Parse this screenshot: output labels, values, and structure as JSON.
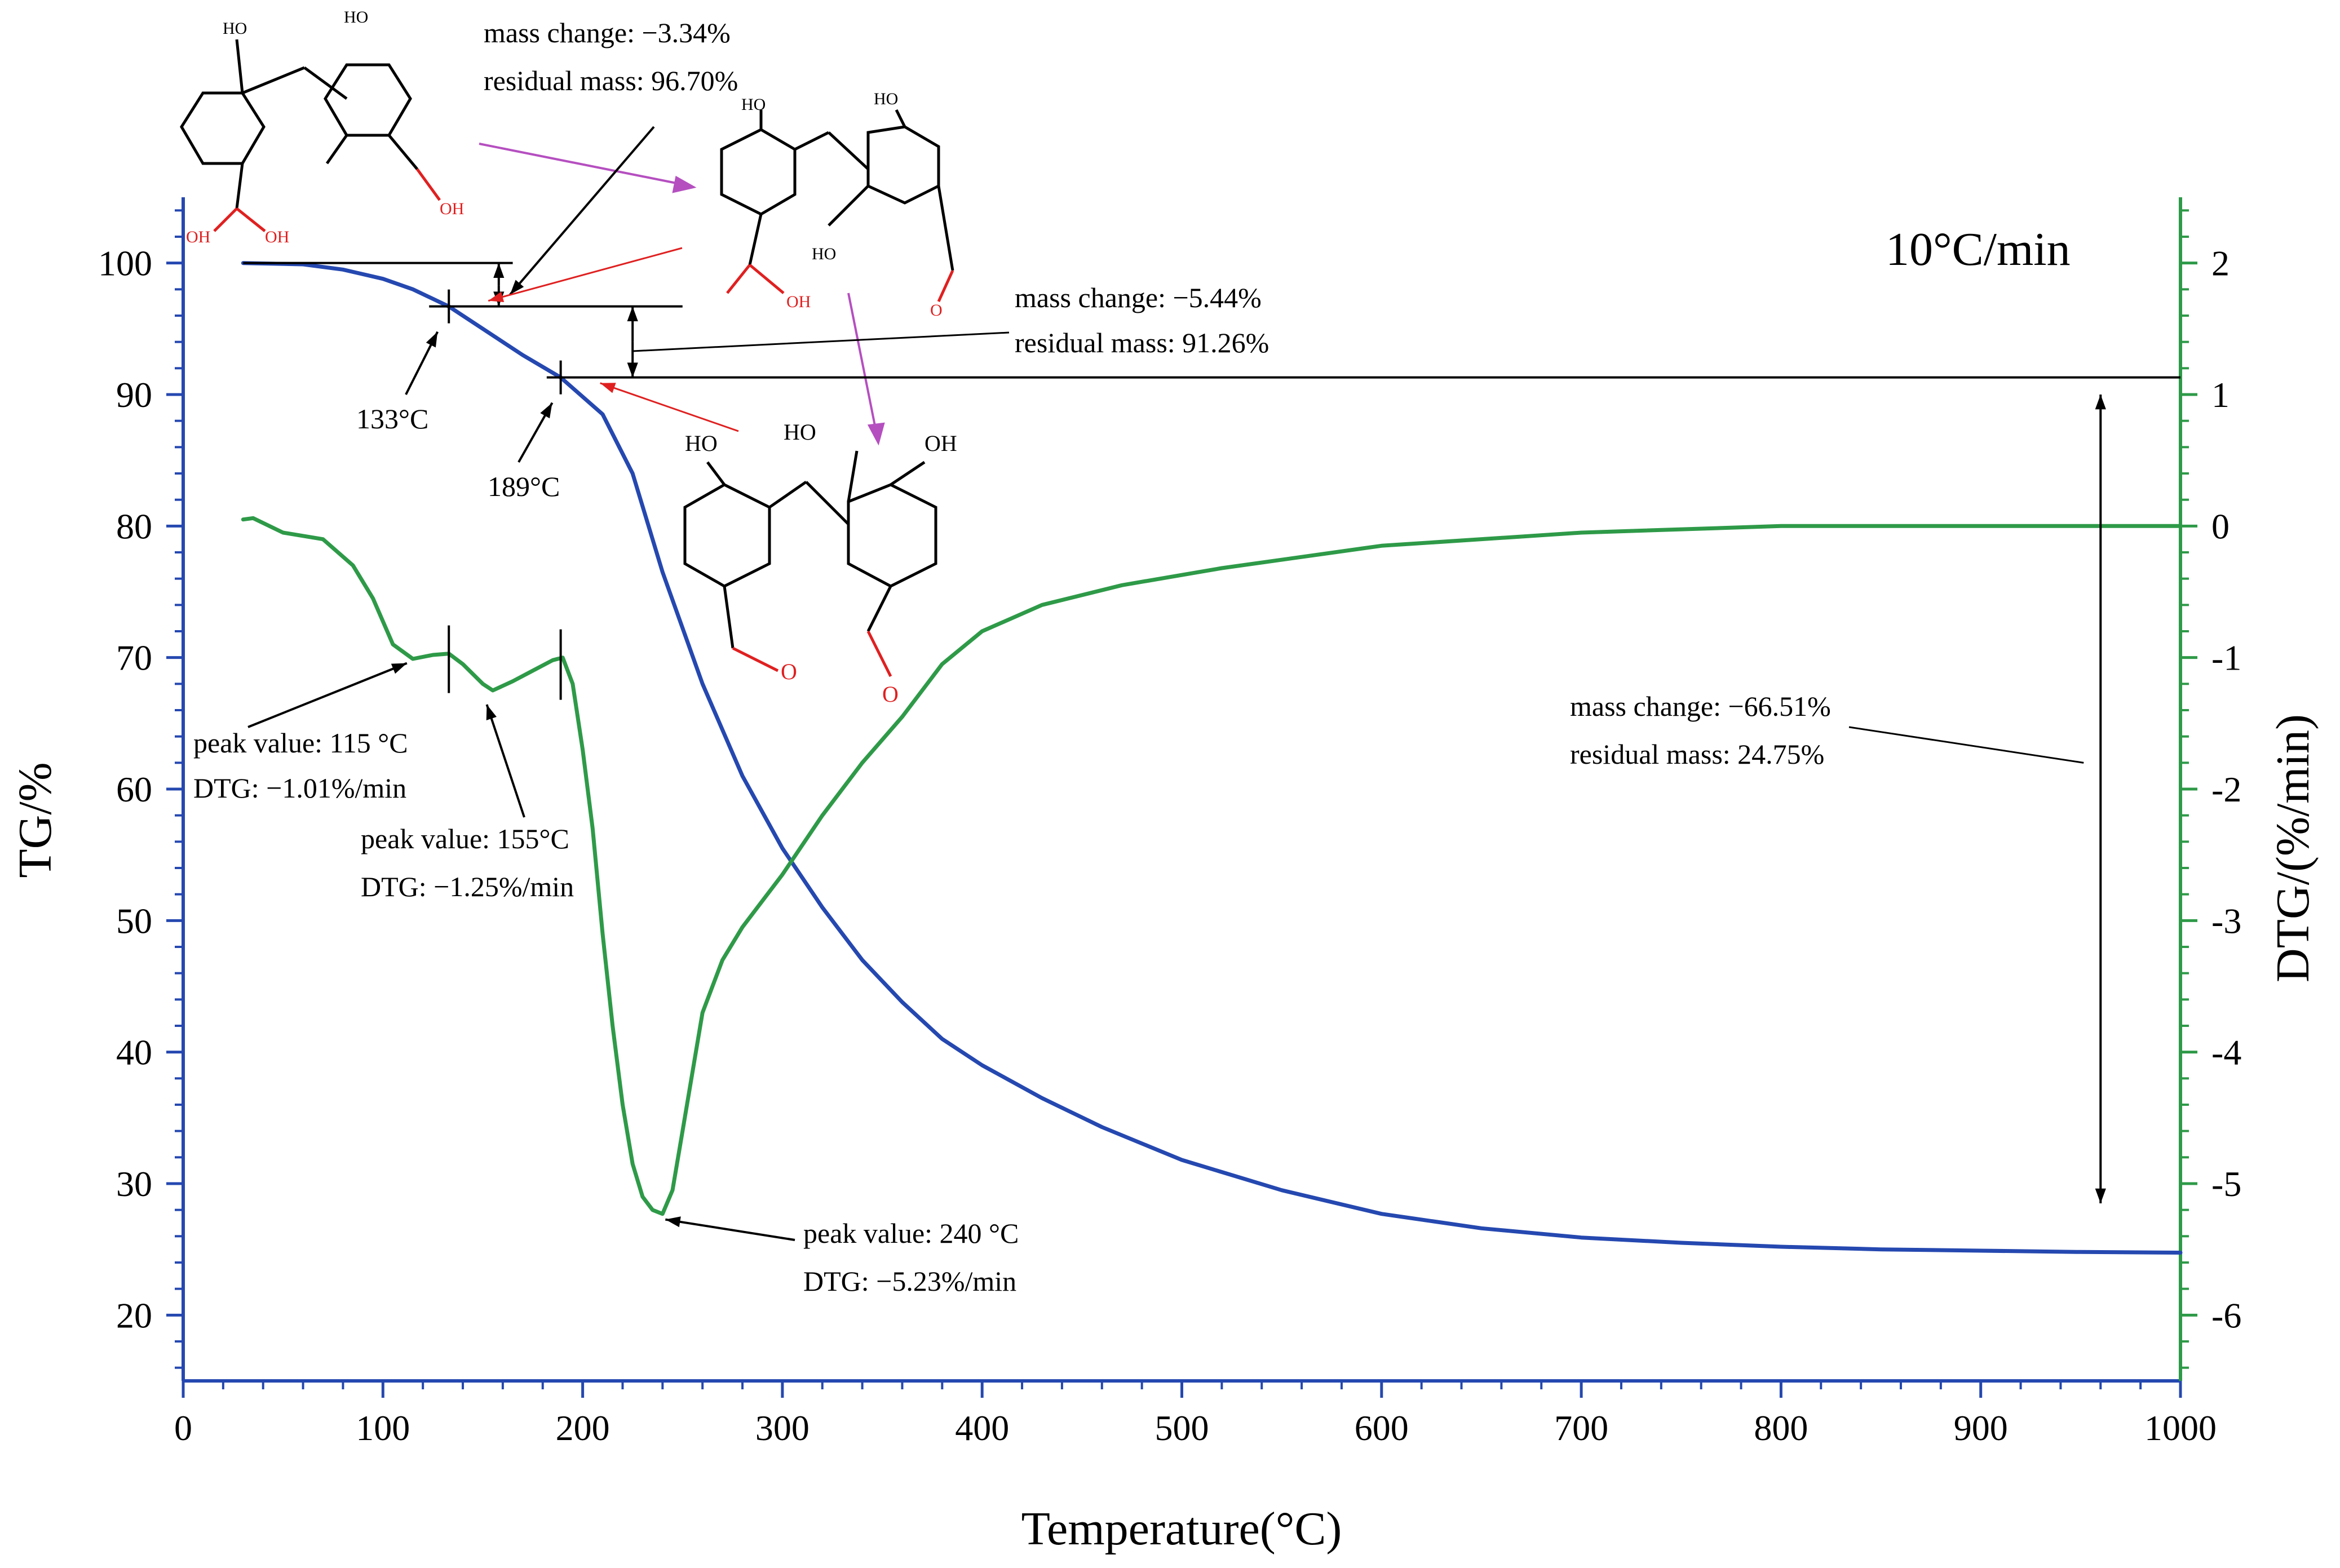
{
  "chart_data": {
    "type": "line",
    "title": "",
    "heating_rate_label": "10°C/min",
    "xlabel": "Temperature(°C)",
    "ylabel_left": "TG/%",
    "ylabel_right": "DTG/(%/min)",
    "xlim": [
      0,
      1000
    ],
    "ylim_left": [
      15,
      105
    ],
    "ylim_right": [
      -6.5,
      2.5
    ],
    "x_ticks": [
      "0",
      "100",
      "200",
      "300",
      "400",
      "500",
      "600",
      "700",
      "800",
      "900",
      "1000"
    ],
    "y_left_ticks": [
      "20",
      "30",
      "40",
      "50",
      "60",
      "70",
      "80",
      "90",
      "100"
    ],
    "y_right_ticks": [
      "-6",
      "-5",
      "-4",
      "-3",
      "-2",
      "-1",
      "0",
      "1",
      "2"
    ],
    "grid": false,
    "colors": {
      "tg": "#2548b0",
      "dtg": "#2e9a48",
      "right_axis": "#2e9a48",
      "left_axis": "#2548b0",
      "red_arrow": "#e02020",
      "purple_arrow": "#b54fc0"
    },
    "series": [
      {
        "axis": "left",
        "x": [
          30,
          60,
          80,
          100,
          115,
          133,
          150,
          170,
          189,
          210,
          225,
          240,
          260,
          280,
          300,
          320,
          340,
          360,
          380,
          400,
          430,
          460,
          500,
          550,
          600,
          650,
          700,
          750,
          800,
          850,
          900,
          950,
          1000
        ],
        "y": [
          100.0,
          99.9,
          99.5,
          98.8,
          98.0,
          96.7,
          95.0,
          93.0,
          91.3,
          88.5,
          84.0,
          76.5,
          68.0,
          61.0,
          55.5,
          51.0,
          47.0,
          43.8,
          41.0,
          39.0,
          36.5,
          34.3,
          31.8,
          29.5,
          27.7,
          26.6,
          25.9,
          25.5,
          25.2,
          25.0,
          24.9,
          24.8,
          24.75
        ]
      },
      {
        "axis": "right",
        "x": [
          30,
          35,
          50,
          70,
          85,
          95,
          105,
          115,
          125,
          133,
          140,
          150,
          155,
          165,
          175,
          185,
          190,
          195,
          200,
          205,
          210,
          215,
          220,
          225,
          230,
          235,
          240,
          245,
          250,
          260,
          270,
          280,
          290,
          300,
          320,
          340,
          360,
          380,
          400,
          430,
          470,
          520,
          600,
          700,
          800,
          900,
          1000
        ],
        "y": [
          0.05,
          0.06,
          -0.05,
          -0.1,
          -0.3,
          -0.55,
          -0.9,
          -1.01,
          -0.98,
          -0.97,
          -1.05,
          -1.2,
          -1.25,
          -1.18,
          -1.1,
          -1.02,
          -1.0,
          -1.2,
          -1.7,
          -2.3,
          -3.1,
          -3.8,
          -4.4,
          -4.85,
          -5.1,
          -5.2,
          -5.23,
          -5.05,
          -4.6,
          -3.7,
          -3.3,
          -3.05,
          -2.85,
          -2.65,
          -2.2,
          -1.8,
          -1.45,
          -1.05,
          -0.8,
          -0.6,
          -0.45,
          -0.32,
          -0.15,
          -0.05,
          0.0,
          0.0,
          0.0
        ]
      }
    ],
    "annotations": {
      "mass1": {
        "a": "mass change: −3.34%",
        "b": "residual mass: 96.70%"
      },
      "mass2": {
        "a": "mass change: −5.44%",
        "b": "residual mass: 91.26%"
      },
      "mass3": {
        "a": "mass change: −66.51%",
        "b": "residual mass: 24.75%"
      },
      "temp1": "133°C",
      "temp2": "189°C",
      "peak1": {
        "a": "peak value: 115 °C",
        "b": "DTG: −1.01%/min"
      },
      "peak2": {
        "a": "peak value: 155°C",
        "b": "DTG: −1.25%/min"
      },
      "peak3": {
        "a": "peak value: 240 °C",
        "b": "DTG: −5.23%/min"
      }
    },
    "chem_labels": {
      "ho": "HO",
      "oh": "OH",
      "o": "O"
    }
  }
}
